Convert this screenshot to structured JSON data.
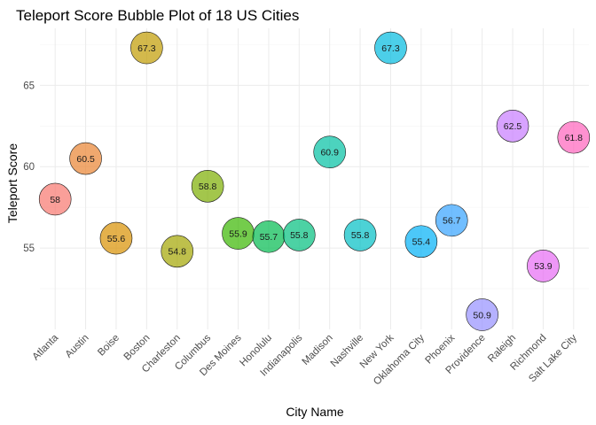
{
  "chart_data": {
    "type": "scatter",
    "title": "Teleport Score Bubble Plot of 18 US Cities",
    "xlabel": "City Name",
    "ylabel": "Teleport Score",
    "ylim": [
      50.0,
      68.5
    ],
    "yticks": [
      55,
      60,
      65
    ],
    "grid": true,
    "legend": "none",
    "categories": [
      "Atlanta",
      "Austin",
      "Boise",
      "Boston",
      "Charleston",
      "Columbus",
      "Des Moines",
      "Honolulu",
      "Indianapolis",
      "Madison",
      "Nashville",
      "New York",
      "Oklahoma City",
      "Phoenix",
      "Providence",
      "Raleigh",
      "Richmond",
      "Salt Lake City"
    ],
    "values": [
      58,
      60.5,
      55.6,
      67.3,
      54.8,
      58.8,
      55.9,
      55.7,
      55.8,
      60.9,
      55.8,
      67.3,
      55.4,
      56.7,
      50.9,
      62.5,
      53.9,
      61.8
    ],
    "labels": [
      "58",
      "60.5",
      "55.6",
      "67.3",
      "54.8",
      "58.8",
      "55.9",
      "55.7",
      "55.8",
      "60.9",
      "55.8",
      "67.3",
      "55.4",
      "56.7",
      "50.9",
      "62.5",
      "53.9",
      "61.8"
    ],
    "colors": [
      "#F8766D",
      "#EA8331",
      "#D89000",
      "#C09B00",
      "#A3A500",
      "#7CAE00",
      "#39B600",
      "#00BB4E",
      "#00BF7D",
      "#00C1A3",
      "#00BFC4",
      "#00BAE0",
      "#00B0F6",
      "#35A2FF",
      "#9590FF",
      "#C77CFF",
      "#E76BF3",
      "#FF62BC"
    ],
    "bubble_alpha": 0.7
  }
}
